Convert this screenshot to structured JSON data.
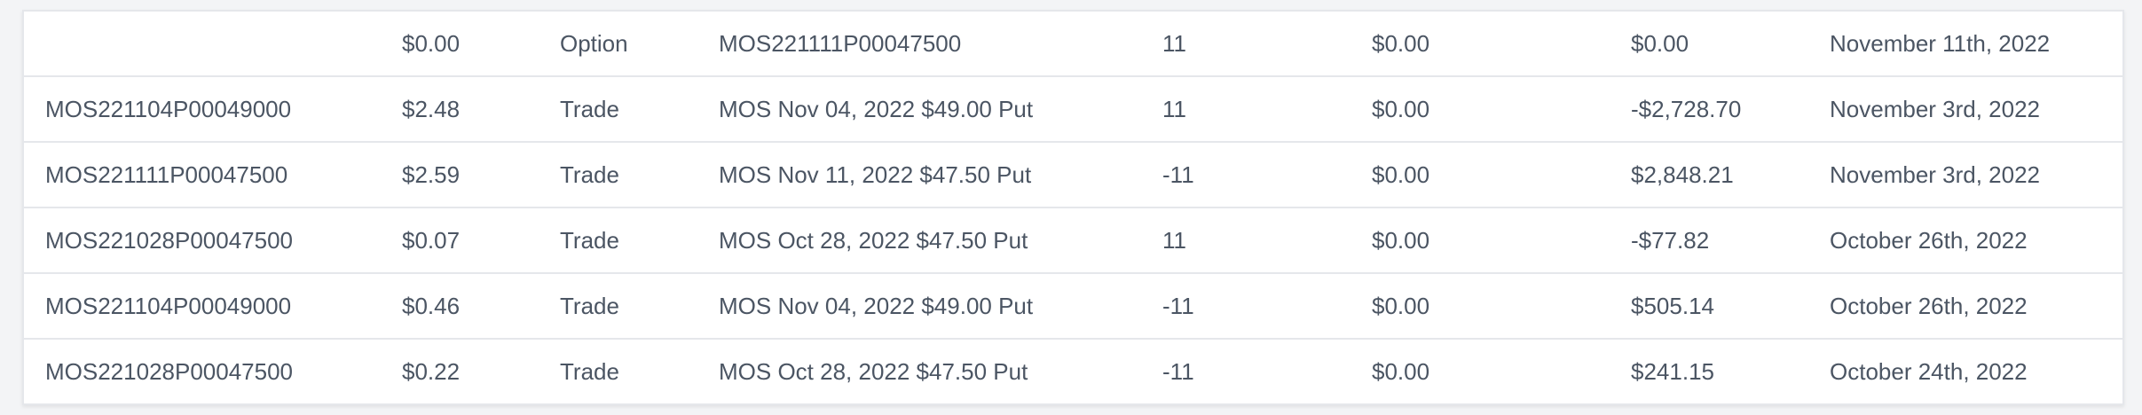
{
  "table": {
    "rows": [
      {
        "symbol": "",
        "price": "$0.00",
        "type": "Option",
        "description": "MOS221111P00047500",
        "quantity": "11",
        "fees": "$0.00",
        "amount": "$0.00",
        "date": "November 11th, 2022"
      },
      {
        "symbol": "MOS221104P00049000",
        "price": "$2.48",
        "type": "Trade",
        "description": "MOS Nov 04, 2022 $49.00 Put",
        "quantity": "11",
        "fees": "$0.00",
        "amount": "-$2,728.70",
        "date": "November 3rd, 2022"
      },
      {
        "symbol": "MOS221111P00047500",
        "price": "$2.59",
        "type": "Trade",
        "description": "MOS Nov 11, 2022 $47.50 Put",
        "quantity": "-11",
        "fees": "$0.00",
        "amount": "$2,848.21",
        "date": "November 3rd, 2022"
      },
      {
        "symbol": "MOS221028P00047500",
        "price": "$0.07",
        "type": "Trade",
        "description": "MOS Oct 28, 2022 $47.50 Put",
        "quantity": "11",
        "fees": "$0.00",
        "amount": "-$77.82",
        "date": "October 26th, 2022"
      },
      {
        "symbol": "MOS221104P00049000",
        "price": "$0.46",
        "type": "Trade",
        "description": "MOS Nov 04, 2022 $49.00 Put",
        "quantity": "-11",
        "fees": "$0.00",
        "amount": "$505.14",
        "date": "October 26th, 2022"
      },
      {
        "symbol": "MOS221028P00047500",
        "price": "$0.22",
        "type": "Trade",
        "description": "MOS Oct 28, 2022 $47.50 Put",
        "quantity": "-11",
        "fees": "$0.00",
        "amount": "$241.15",
        "date": "October 24th, 2022"
      }
    ]
  }
}
